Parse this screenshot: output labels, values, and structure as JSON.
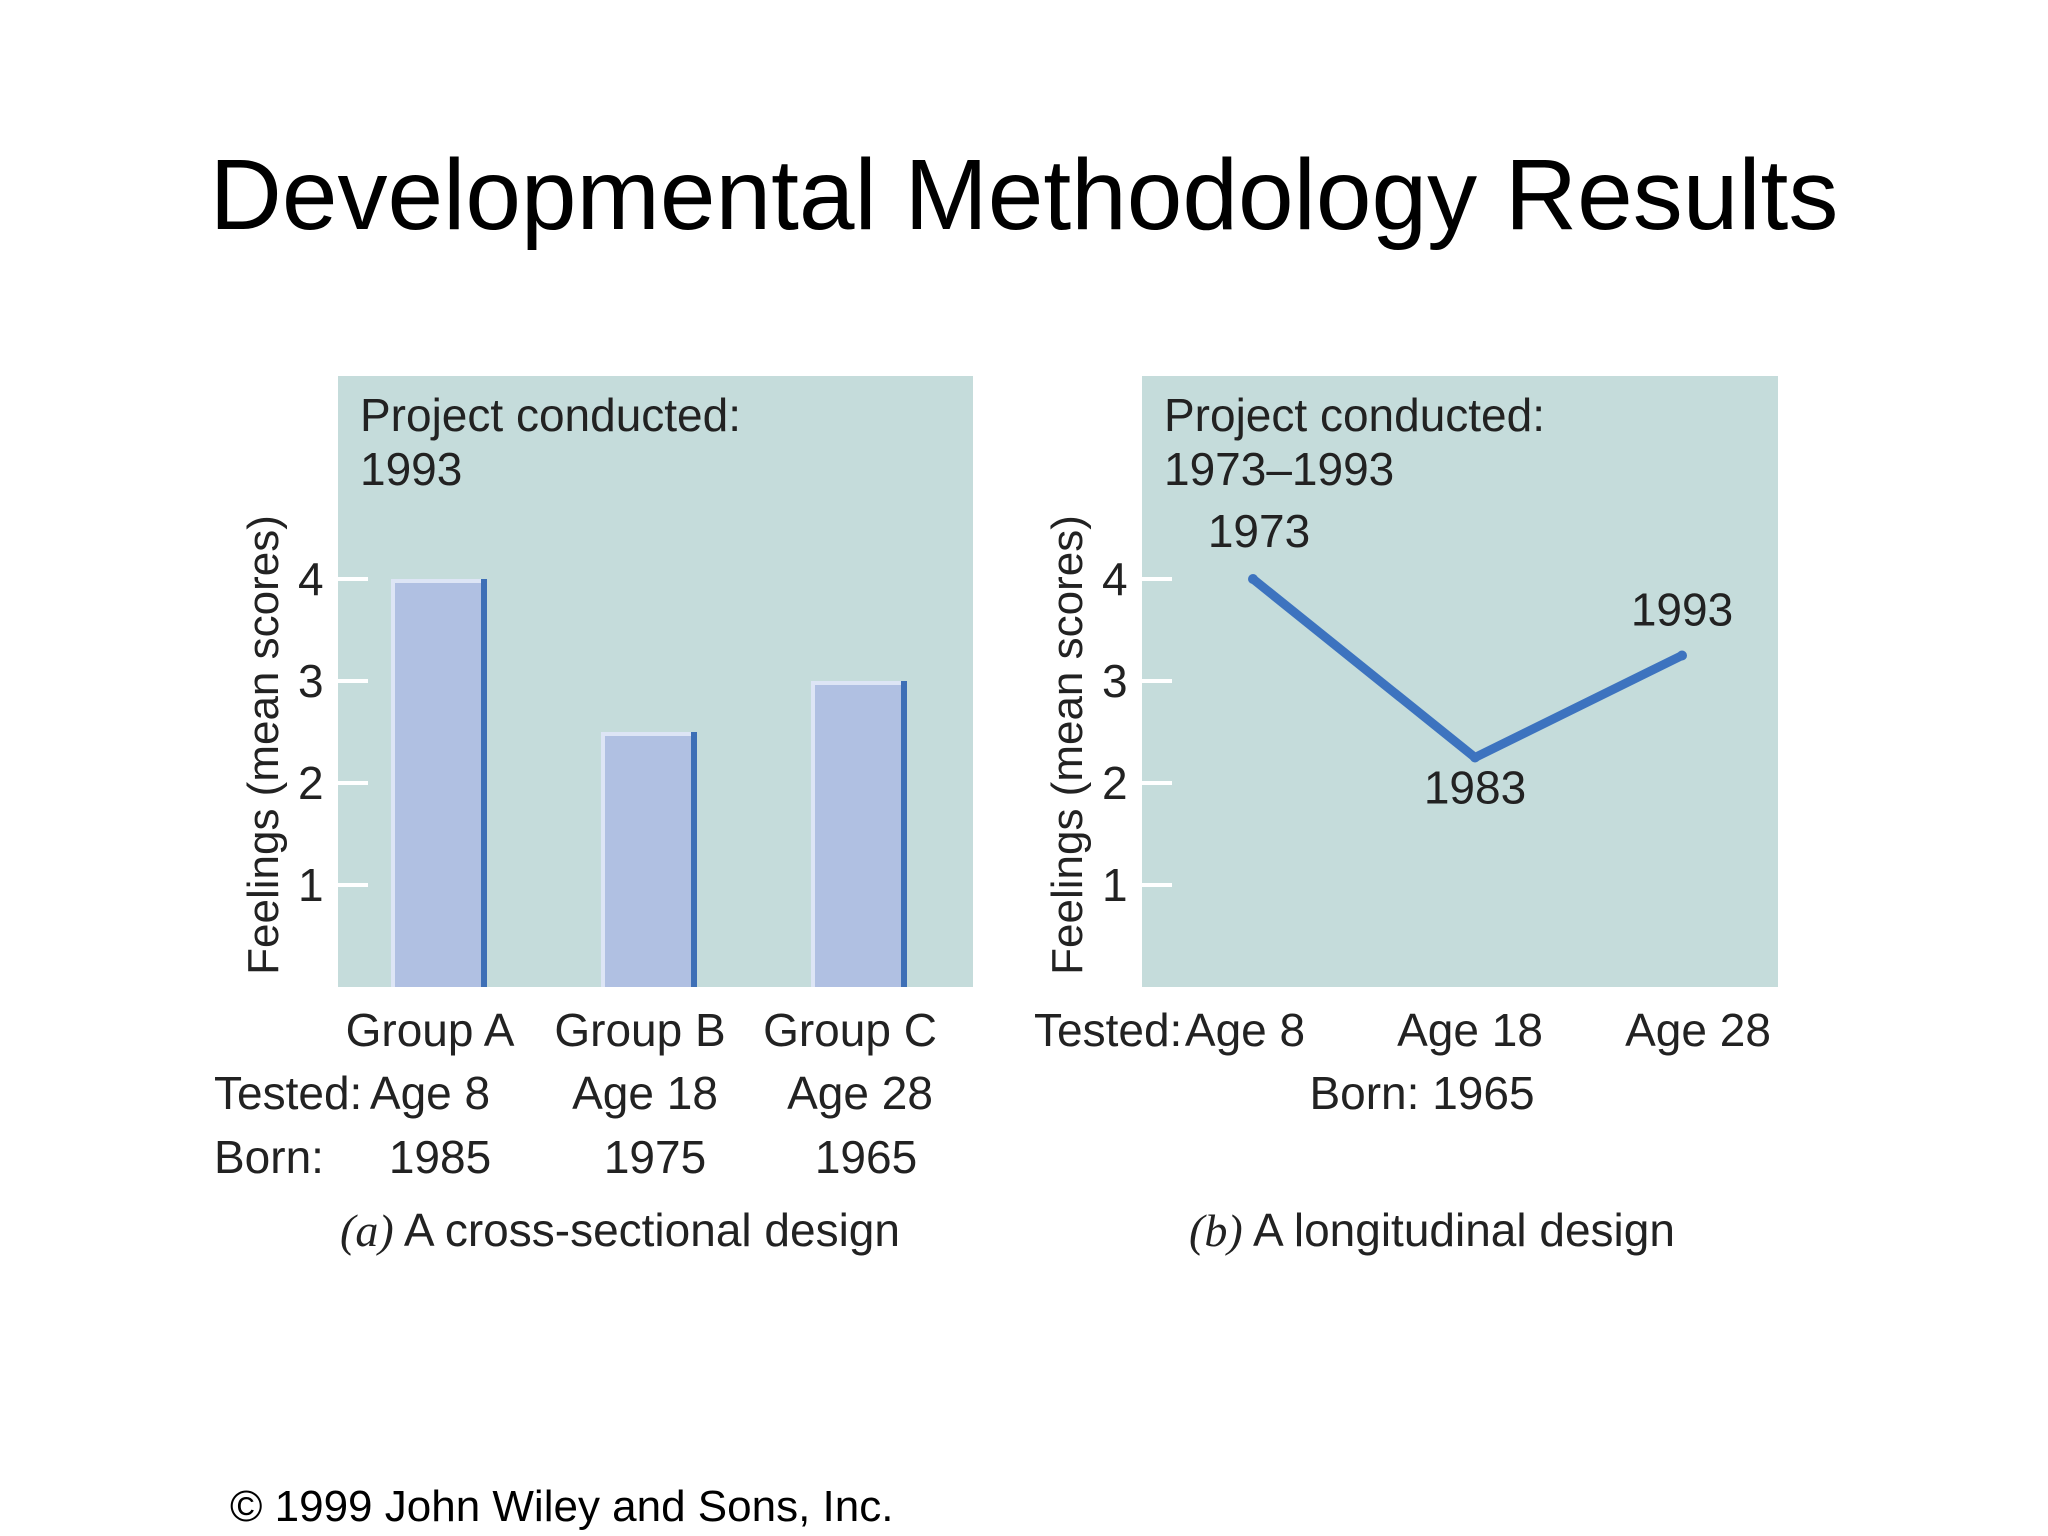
{
  "slide": {
    "title": "Developmental Methodology Results",
    "footer": "©  1999 John Wiley and Sons, Inc."
  },
  "chart_data": [
    {
      "type": "bar",
      "project_label": "Project conducted:",
      "project_years": "1993",
      "ylabel": "Feelings (mean scores)",
      "yticks": [
        "1",
        "2",
        "3",
        "4"
      ],
      "ylim": [
        0,
        4.9
      ],
      "categories": [
        "Group A",
        "Group B",
        "Group C"
      ],
      "values": [
        4,
        2.5,
        3
      ],
      "row_labels": {
        "tested": "Tested:",
        "born": "Born:"
      },
      "tested": [
        "Age 8",
        "Age 18",
        "Age 28"
      ],
      "born": [
        "1985",
        "1975",
        "1965"
      ],
      "caption_letter": "(a)",
      "caption": "A cross-sectional design",
      "colors": {
        "panel": "#c5dcdb",
        "bar": "#b0c0e2",
        "bar_edge": "#3d6fb6",
        "bar_highlight": "#dde5f5"
      }
    },
    {
      "type": "line",
      "project_label": "Project conducted:",
      "project_years": "1973–1993",
      "ylabel": "Feelings (mean scores)",
      "yticks": [
        "1",
        "2",
        "3",
        "4"
      ],
      "ylim": [
        0,
        4.9
      ],
      "x": [
        "Age 8",
        "Age 18",
        "Age 28"
      ],
      "points": [
        {
          "label": "1973",
          "value": 4
        },
        {
          "label": "1983",
          "value": 2.25
        },
        {
          "label": "1993",
          "value": 3.25
        }
      ],
      "row_labels": {
        "tested": "Tested:",
        "born": "Born: 1965"
      },
      "caption_letter": "(b)",
      "caption": "A longitudinal design",
      "colors": {
        "panel": "#c5dcdb",
        "line": "#3d73bf"
      }
    }
  ]
}
